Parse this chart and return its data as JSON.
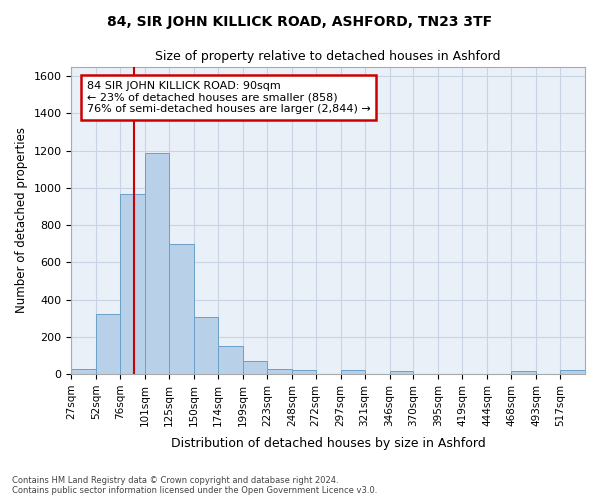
{
  "title": "84, SIR JOHN KILLICK ROAD, ASHFORD, TN23 3TF",
  "subtitle": "Size of property relative to detached houses in Ashford",
  "xlabel": "Distribution of detached houses by size in Ashford",
  "ylabel": "Number of detached properties",
  "bin_edges": [
    27,
    52,
    76,
    101,
    125,
    150,
    174,
    199,
    223,
    248,
    272,
    297,
    321,
    346,
    370,
    395,
    419,
    444,
    468,
    493,
    517,
    542
  ],
  "bin_labels": [
    "27sqm",
    "52sqm",
    "76sqm",
    "101sqm",
    "125sqm",
    "150sqm",
    "174sqm",
    "199sqm",
    "223sqm",
    "248sqm",
    "272sqm",
    "297sqm",
    "321sqm",
    "346sqm",
    "370sqm",
    "395sqm",
    "419sqm",
    "444sqm",
    "468sqm",
    "493sqm",
    "517sqm"
  ],
  "values": [
    25,
    325,
    970,
    1185,
    700,
    305,
    150,
    70,
    25,
    20,
    0,
    20,
    0,
    15,
    0,
    0,
    0,
    0,
    15,
    0,
    20
  ],
  "bar_color": "#b8d0e8",
  "bar_edge_color": "#6aa0c8",
  "grid_color": "#c8d4e4",
  "bg_color": "#eaf0f8",
  "annotation_text": "84 SIR JOHN KILLICK ROAD: 90sqm\n← 23% of detached houses are smaller (858)\n76% of semi-detached houses are larger (2,844) →",
  "annotation_box_color": "#ffffff",
  "annotation_border_color": "#cc0000",
  "footnote1": "Contains HM Land Registry data © Crown copyright and database right 2024.",
  "footnote2": "Contains public sector information licensed under the Open Government Licence v3.0.",
  "ylim": [
    0,
    1650
  ],
  "yticks": [
    0,
    200,
    400,
    600,
    800,
    1000,
    1200,
    1400,
    1600
  ],
  "property_sqm": 90,
  "red_line_color": "#cc0000"
}
